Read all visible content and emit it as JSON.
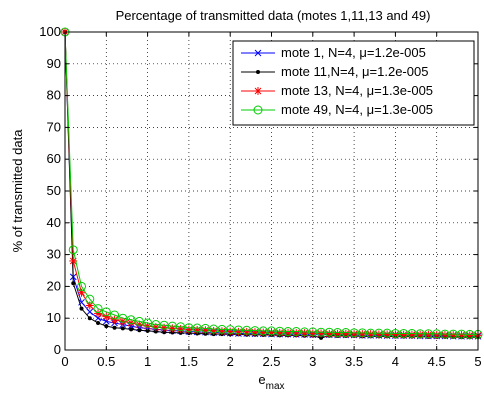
{
  "chart_data": {
    "type": "line",
    "title": "Percentage of transmitted data (motes 1,11,13 and 49)",
    "xlabel": "e",
    "xlabel_sub": "max",
    "ylabel": "% of transmitted data",
    "xlim": [
      0,
      5
    ],
    "ylim": [
      0,
      100
    ],
    "xticks": [
      "0",
      "0.5",
      "1",
      "1.5",
      "2",
      "2.5",
      "3",
      "3.5",
      "4",
      "4.5",
      "5"
    ],
    "yticks": [
      "0",
      "10",
      "20",
      "30",
      "40",
      "50",
      "60",
      "70",
      "80",
      "90",
      "100"
    ],
    "grid": true,
    "legend_position": "top-right",
    "x": [
      0,
      0.1,
      0.2,
      0.3,
      0.4,
      0.5,
      0.6,
      0.7,
      0.8,
      0.9,
      1.0,
      1.1,
      1.2,
      1.3,
      1.4,
      1.5,
      1.6,
      1.7,
      1.8,
      1.9,
      2.0,
      2.1,
      2.2,
      2.3,
      2.4,
      2.5,
      2.6,
      2.7,
      2.8,
      2.9,
      3.0,
      3.1,
      3.2,
      3.3,
      3.4,
      3.5,
      3.6,
      3.7,
      3.8,
      3.9,
      4.0,
      4.1,
      4.2,
      4.3,
      4.4,
      4.5,
      4.6,
      4.7,
      4.8,
      4.9,
      5.0
    ],
    "series": [
      {
        "name": "mote 1, N=4, μ=1.2e-005",
        "color": "#0000ff",
        "marker": "x",
        "values": [
          100,
          23,
          15,
          12,
          10,
          9,
          8.5,
          8,
          7.5,
          7,
          6.8,
          6.5,
          6.3,
          6.1,
          6,
          5.8,
          5.7,
          5.6,
          5.5,
          5.4,
          5.3,
          5.2,
          5.2,
          5.1,
          5.1,
          5,
          5,
          5,
          4.9,
          4.9,
          4.8,
          4.8,
          4.8,
          4.7,
          4.7,
          4.7,
          4.6,
          4.6,
          4.6,
          4.5,
          4.5,
          4.5,
          4.5,
          4.4,
          4.4,
          4.4,
          4.4,
          4.3,
          4.3,
          4.3,
          4.3
        ]
      },
      {
        "name": "mote 11,N=4, μ=1.2e-005",
        "color": "#000000",
        "marker": "dot",
        "values": [
          100,
          21,
          13,
          10,
          8.5,
          7.5,
          7,
          6.8,
          6.5,
          6.2,
          6,
          5.8,
          5.6,
          5.5,
          5.4,
          5.3,
          5.2,
          5.1,
          5,
          5,
          4.9,
          4.9,
          4.8,
          4.8,
          4.7,
          4.7,
          4.6,
          4.6,
          4.6,
          4.5,
          4.5,
          3.8,
          4.5,
          4.4,
          4.4,
          4.4,
          4.3,
          4.3,
          4.3,
          4.3,
          4.2,
          4.2,
          4.2,
          4.2,
          4.1,
          4.1,
          4.1,
          4.1,
          4,
          4,
          4
        ]
      },
      {
        "name": "mote 13, N=4, μ=1.3e-005",
        "color": "#ff0000",
        "marker": "star",
        "values": [
          100,
          28,
          18,
          14,
          11.5,
          10.5,
          9.5,
          9,
          8.5,
          8,
          7.5,
          7.2,
          7,
          6.8,
          6.6,
          6.4,
          6.3,
          6.2,
          6,
          5.9,
          5.8,
          5.7,
          5.7,
          5.6,
          5.5,
          5.5,
          5.4,
          5.4,
          5.3,
          5.3,
          5.2,
          5.2,
          5.1,
          5.1,
          5.1,
          5,
          5,
          5,
          4.9,
          4.9,
          4.9,
          4.8,
          4.8,
          4.8,
          4.8,
          4.7,
          4.7,
          4.7,
          4.7,
          4.6,
          4.6
        ]
      },
      {
        "name": "mote 49, N=4, μ=1.3e-005",
        "color": "#00cc00",
        "marker": "circle",
        "values": [
          100,
          31.5,
          20,
          16,
          13,
          12,
          11,
          10,
          9.5,
          9,
          8.5,
          8,
          7.8,
          7.5,
          7.3,
          7,
          6.9,
          6.8,
          6.6,
          6.5,
          6.4,
          6.3,
          6.2,
          6.1,
          6,
          6,
          5.9,
          5.8,
          5.8,
          5.7,
          5.7,
          5.6,
          5.6,
          5.5,
          5.5,
          5.4,
          5.4,
          5.3,
          5.3,
          5.3,
          5.2,
          5.2,
          5.2,
          5.1,
          5.1,
          5.1,
          5,
          5,
          5,
          4.9,
          4.9
        ]
      }
    ]
  }
}
